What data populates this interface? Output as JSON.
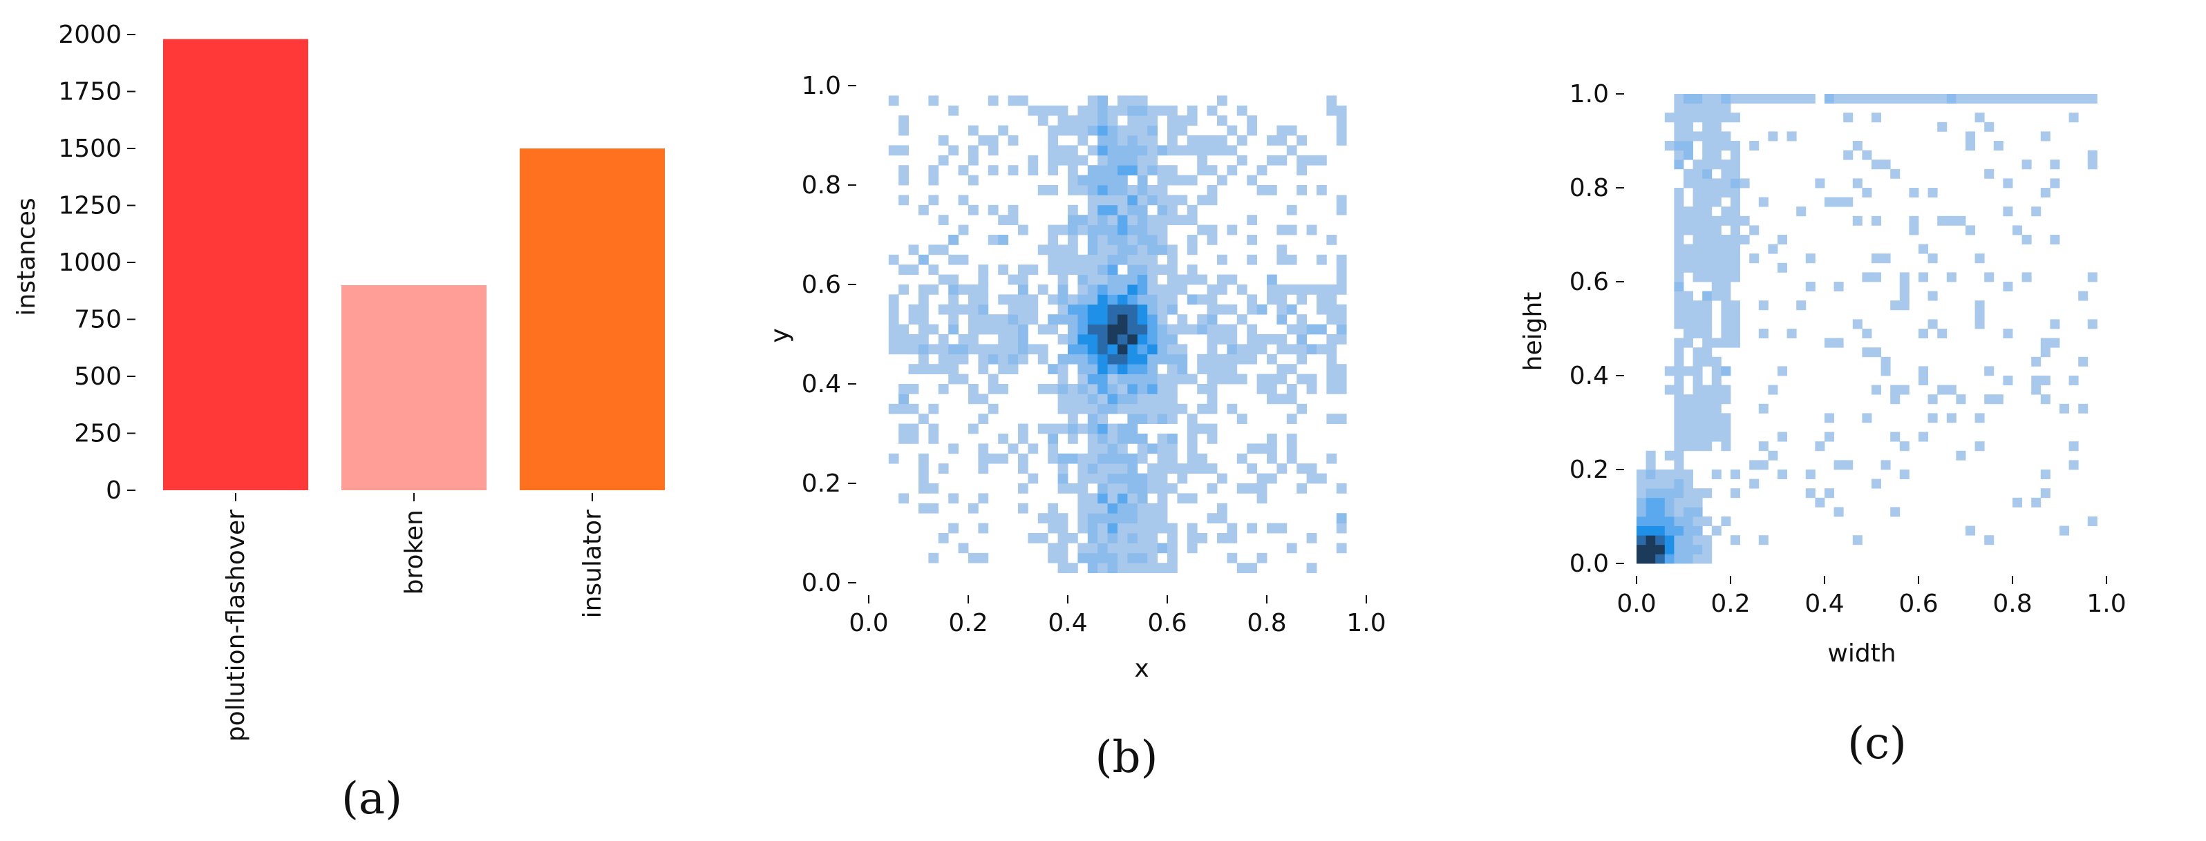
{
  "chart_data": [
    {
      "type": "bar",
      "panel": "(a)",
      "categories": [
        "pollution-flashover",
        "broken",
        "insulator"
      ],
      "values": [
        1980,
        900,
        1500
      ],
      "colors": [
        "#ff3838",
        "#ff9d97",
        "#ff701f"
      ],
      "xlabel": "",
      "ylabel": "instances",
      "ylim": [
        0,
        2000
      ],
      "yticks": [
        0,
        250,
        500,
        750,
        1000,
        1250,
        1500,
        1750,
        2000
      ],
      "grid": false
    },
    {
      "type": "heatmap",
      "panel": "(b)",
      "xlabel": "x",
      "ylabel": "y",
      "xlim": [
        0,
        1
      ],
      "ylim": [
        0,
        1
      ],
      "xticks": [
        0.0,
        0.2,
        0.4,
        0.6,
        0.8,
        1.0
      ],
      "yticks": [
        0.0,
        0.2,
        0.4,
        0.6,
        0.8,
        1.0
      ],
      "bins": 50,
      "description_of_density": "densest around (0.5, 0.5), vertical band near x=0.5, horizontal band near y=0.5, sparse elsewhere",
      "colors": {
        "low": "#a8c8ec",
        "mid": "#1e90e8",
        "high": "#1c3a5a"
      },
      "grid": false
    },
    {
      "type": "heatmap",
      "panel": "(c)",
      "xlabel": "width",
      "ylabel": "height",
      "xlim": [
        0,
        1
      ],
      "ylim": [
        0,
        1
      ],
      "xticks": [
        0.0,
        0.2,
        0.4,
        0.6,
        0.8,
        1.0
      ],
      "yticks": [
        0.0,
        0.2,
        0.4,
        0.6,
        0.8,
        1.0
      ],
      "bins": 50,
      "description_of_density": "peak near (0.03, 0.03), cluster at width 0.08-0.2 height 0.5-1.0, row at height 1.0, scattered elsewhere",
      "colors": {
        "low": "#a8c8ec",
        "mid": "#1e90e8",
        "high": "#1c3a5a"
      },
      "grid": false
    }
  ],
  "ytick_labels_a": [
    "0",
    "250",
    "500",
    "750",
    "1000",
    "1250",
    "1500",
    "1750",
    "2000"
  ],
  "tick_labels_01": [
    "0.0",
    "0.2",
    "0.4",
    "0.6",
    "0.8",
    "1.0"
  ],
  "panel_labels": [
    "(a)",
    "(b)",
    "(c)"
  ]
}
